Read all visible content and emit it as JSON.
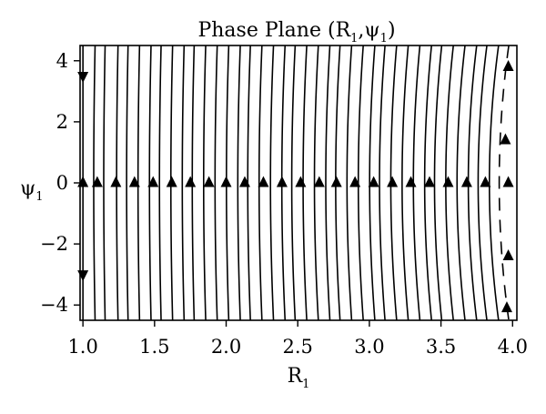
{
  "chart_data": {
    "type": "streamplot",
    "title": "Phase Plane (R",
    "title_sub_1": "1",
    "title_mid": ",ψ",
    "title_sub_2": "1",
    "title_end": ")",
    "xlabel": "R",
    "xlabel_sub": "1",
    "ylabel": "ψ",
    "ylabel_sub": "1",
    "xlim": [
      0.98,
      4.03
    ],
    "ylim": [
      -4.5,
      4.5
    ],
    "xticks": [
      1.0,
      1.5,
      2.0,
      2.5,
      3.0,
      3.5,
      4.0
    ],
    "xtick_labels": [
      "1.0",
      "1.5",
      "2.0",
      "2.5",
      "3.0",
      "3.5",
      "4.0"
    ],
    "yticks": [
      4,
      2,
      0,
      -2,
      -4
    ],
    "ytick_labels": [
      "4",
      "2",
      "0",
      "−2",
      "−4"
    ],
    "grid": false,
    "legend": "none",
    "color": "#000000",
    "streamlines_R": [
      1.0,
      1.08,
      1.15,
      1.24,
      1.31,
      1.39,
      1.47,
      1.54,
      1.62,
      1.7,
      1.77,
      1.85,
      1.93,
      2.01,
      2.09,
      2.16,
      2.24,
      2.32,
      2.4,
      2.47,
      2.55,
      2.63,
      2.71,
      2.78,
      2.86,
      2.94,
      3.02,
      3.09,
      3.17,
      3.25,
      3.33,
      3.41,
      3.48,
      3.56,
      3.64,
      3.72,
      3.79,
      3.87,
      3.94
    ],
    "arrows": [
      {
        "R": 1.0,
        "psi": 3.5,
        "dir": "down"
      },
      {
        "R": 1.0,
        "psi": -3.0,
        "dir": "down"
      },
      {
        "R": 1.0,
        "psi": 0.0,
        "dir": "up"
      },
      {
        "R": 1.1,
        "psi": 0.0,
        "dir": "up"
      },
      {
        "R": 1.23,
        "psi": 0.0,
        "dir": "up"
      },
      {
        "R": 1.36,
        "psi": 0.0,
        "dir": "up"
      },
      {
        "R": 1.49,
        "psi": 0.0,
        "dir": "up"
      },
      {
        "R": 1.62,
        "psi": 0.0,
        "dir": "up"
      },
      {
        "R": 1.75,
        "psi": 0.0,
        "dir": "up"
      },
      {
        "R": 1.88,
        "psi": 0.0,
        "dir": "up"
      },
      {
        "R": 2.0,
        "psi": 0.0,
        "dir": "up"
      },
      {
        "R": 2.13,
        "psi": 0.0,
        "dir": "up"
      },
      {
        "R": 2.26,
        "psi": 0.0,
        "dir": "up"
      },
      {
        "R": 2.39,
        "psi": 0.0,
        "dir": "up"
      },
      {
        "R": 2.52,
        "psi": 0.0,
        "dir": "up"
      },
      {
        "R": 2.65,
        "psi": 0.0,
        "dir": "up"
      },
      {
        "R": 2.77,
        "psi": 0.0,
        "dir": "up"
      },
      {
        "R": 2.9,
        "psi": 0.0,
        "dir": "up"
      },
      {
        "R": 3.03,
        "psi": 0.0,
        "dir": "up"
      },
      {
        "R": 3.16,
        "psi": 0.0,
        "dir": "up"
      },
      {
        "R": 3.29,
        "psi": 0.0,
        "dir": "up"
      },
      {
        "R": 3.42,
        "psi": 0.0,
        "dir": "up"
      },
      {
        "R": 3.55,
        "psi": 0.0,
        "dir": "up"
      },
      {
        "R": 3.68,
        "psi": 0.0,
        "dir": "up"
      },
      {
        "R": 3.81,
        "psi": 0.0,
        "dir": "up"
      },
      {
        "R": 3.97,
        "psi": 3.8,
        "dir": "up"
      },
      {
        "R": 3.95,
        "psi": 1.4,
        "dir": "up"
      },
      {
        "R": 3.97,
        "psi": 0.0,
        "dir": "up"
      },
      {
        "R": 3.97,
        "psi": -2.4,
        "dir": "up"
      },
      {
        "R": 3.96,
        "psi": -4.1,
        "dir": "up"
      }
    ]
  }
}
